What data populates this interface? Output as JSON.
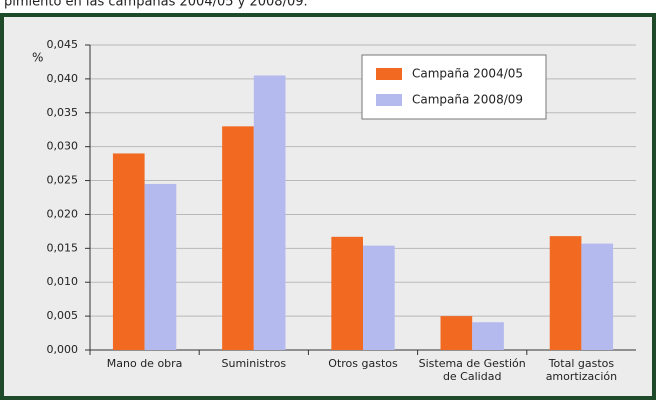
{
  "chart_data": {
    "type": "bar",
    "subtitle": "pimiento en las campañas 2004/05 y 2008/09.",
    "y_label": "%",
    "categories": [
      [
        "Mano de obra"
      ],
      [
        "Suministros"
      ],
      [
        "Otros gastos"
      ],
      [
        "Sistema de Gestión",
        "de Calidad"
      ],
      [
        "Total gastos",
        "amortización"
      ]
    ],
    "series": [
      {
        "name": "Campaña 2004/05",
        "color": "#f26a21",
        "values": [
          0.029,
          0.033,
          0.0167,
          0.005,
          0.0168
        ]
      },
      {
        "name": "Campaña 2008/09",
        "color": "#b4b9ee",
        "values": [
          0.0245,
          0.0405,
          0.0154,
          0.0041,
          0.0157
        ]
      }
    ],
    "ylim": [
      0,
      0.045
    ],
    "yticks": [
      {
        "value": 0,
        "label": "0,000"
      },
      {
        "value": 0.005,
        "label": "0,005"
      },
      {
        "value": 0.01,
        "label": "0,010"
      },
      {
        "value": 0.015,
        "label": "0,015"
      },
      {
        "value": 0.02,
        "label": "0,020"
      },
      {
        "value": 0.025,
        "label": "0,025"
      },
      {
        "value": 0.03,
        "label": "0,030"
      },
      {
        "value": 0.035,
        "label": "0,035"
      },
      {
        "value": 0.04,
        "label": "0,040"
      },
      {
        "value": 0.045,
        "label": "0,045"
      }
    ],
    "grid": true,
    "legend": "upper right"
  }
}
